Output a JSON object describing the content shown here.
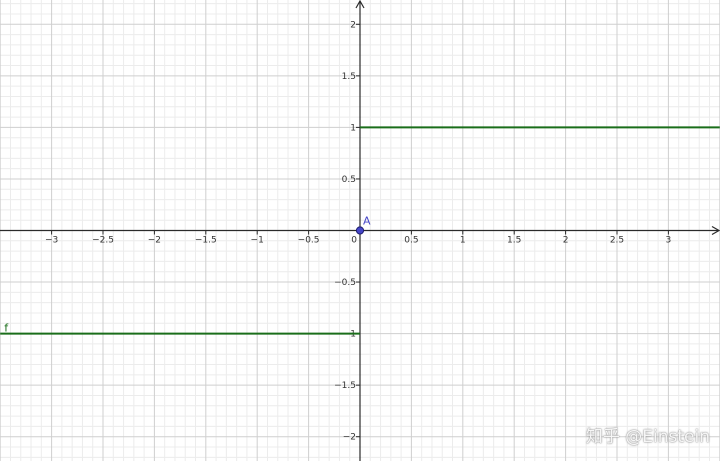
{
  "chart_data": {
    "type": "line",
    "xlim": [
      -3.5,
      3.5
    ],
    "ylim": [
      -2.25,
      2.25
    ],
    "x_ticks": [
      -3,
      -2.5,
      -2,
      -1.5,
      -1,
      -0.5,
      0,
      0.5,
      1,
      1.5,
      2,
      2.5,
      3
    ],
    "y_ticks": [
      -2,
      -1.5,
      -1,
      -0.5,
      0.5,
      1,
      1.5,
      2
    ],
    "x_tick_labels": [
      "−3",
      "−2.5",
      "−2",
      "−1.5",
      "−1",
      "−0.5",
      "0",
      "0.5",
      "1",
      "1.5",
      "2",
      "2.5",
      "3"
    ],
    "y_tick_labels": [
      "−2",
      "−1.5",
      "−1",
      "−0.5",
      "0.5",
      "1",
      "1.5",
      "2"
    ],
    "grid": true,
    "series": [
      {
        "name": "f",
        "color": "#1a6e1a",
        "segments": [
          {
            "x": [
              -3.5,
              0
            ],
            "y": [
              -1,
              -1
            ]
          },
          {
            "x": [
              0,
              3.5
            ],
            "y": [
              1,
              1
            ]
          }
        ]
      }
    ],
    "points": [
      {
        "name": "A",
        "x": 0,
        "y": 0,
        "color": "#4646c8"
      }
    ]
  },
  "watermark": "知乎 @Einstein"
}
